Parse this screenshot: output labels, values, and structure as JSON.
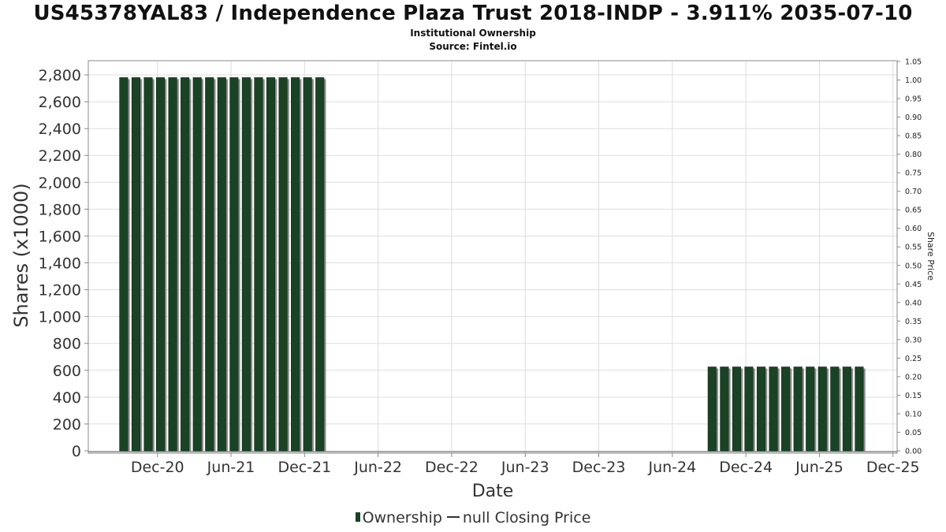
{
  "title": "US45378YAL83 / Independence Plaza Trust 2018-INDP - 3.911% 2035-07-10",
  "subtitle": "Institutional Ownership",
  "source": "Source: Fintel.io",
  "legend": {
    "ownership": "Ownership",
    "closing_price": "null Closing Price"
  },
  "colors": {
    "bar": "#1a4325",
    "bar_shadow": "#8a8a8a",
    "grid": "#dddddd",
    "axis": "#888888"
  },
  "chart_data": {
    "type": "bar",
    "xlabel": "Date",
    "ylabel": "Shares (x1000)",
    "y2label": "Share Price",
    "ylim": [
      0,
      2900
    ],
    "y2lim": [
      0,
      1.05
    ],
    "grid": true,
    "legend_position": "bottom-center",
    "x_ticks": [
      "Dec-20",
      "Jun-21",
      "Dec-21",
      "Jun-22",
      "Dec-22",
      "Jun-23",
      "Dec-23",
      "Jun-24",
      "Dec-24",
      "Jun-25",
      "Dec-25"
    ],
    "y_ticks": [
      "0",
      "200",
      "400",
      "600",
      "800",
      "1,000",
      "1,200",
      "1,400",
      "1,600",
      "1,800",
      "2,000",
      "2,200",
      "2,400",
      "2,600",
      "2,800"
    ],
    "y2_ticks": [
      "0.00",
      "0.05",
      "0.10",
      "0.15",
      "0.20",
      "0.25",
      "0.30",
      "0.35",
      "0.40",
      "0.45",
      "0.50",
      "0.55",
      "0.60",
      "0.65",
      "0.70",
      "0.75",
      "0.80",
      "0.85",
      "0.90",
      "0.95",
      "1.00",
      "1.05"
    ],
    "series": [
      {
        "name": "Ownership",
        "points": [
          {
            "date": "2020-10",
            "value": 2780
          },
          {
            "date": "2020-11",
            "value": 2780
          },
          {
            "date": "2020-12",
            "value": 2780
          },
          {
            "date": "2021-01",
            "value": 2780
          },
          {
            "date": "2021-02",
            "value": 2780
          },
          {
            "date": "2021-03",
            "value": 2780
          },
          {
            "date": "2021-04",
            "value": 2780
          },
          {
            "date": "2021-05",
            "value": 2780
          },
          {
            "date": "2021-06",
            "value": 2780
          },
          {
            "date": "2021-07",
            "value": 2780
          },
          {
            "date": "2021-08",
            "value": 2780
          },
          {
            "date": "2021-09",
            "value": 2780
          },
          {
            "date": "2021-10",
            "value": 2780
          },
          {
            "date": "2021-11",
            "value": 2780
          },
          {
            "date": "2021-12",
            "value": 2780
          },
          {
            "date": "2022-01",
            "value": 2780
          },
          {
            "date": "2022-02",
            "value": 2780
          },
          {
            "date": "2024-10",
            "value": 625
          },
          {
            "date": "2024-11",
            "value": 625
          },
          {
            "date": "2024-12",
            "value": 625
          },
          {
            "date": "2025-01",
            "value": 625
          },
          {
            "date": "2025-02",
            "value": 625
          },
          {
            "date": "2025-03",
            "value": 625
          },
          {
            "date": "2025-04",
            "value": 625
          },
          {
            "date": "2025-05",
            "value": 625
          },
          {
            "date": "2025-06",
            "value": 625
          },
          {
            "date": "2025-07",
            "value": 625
          },
          {
            "date": "2025-08",
            "value": 625
          },
          {
            "date": "2025-09",
            "value": 625
          },
          {
            "date": "2025-10",
            "value": 625
          }
        ]
      }
    ]
  }
}
